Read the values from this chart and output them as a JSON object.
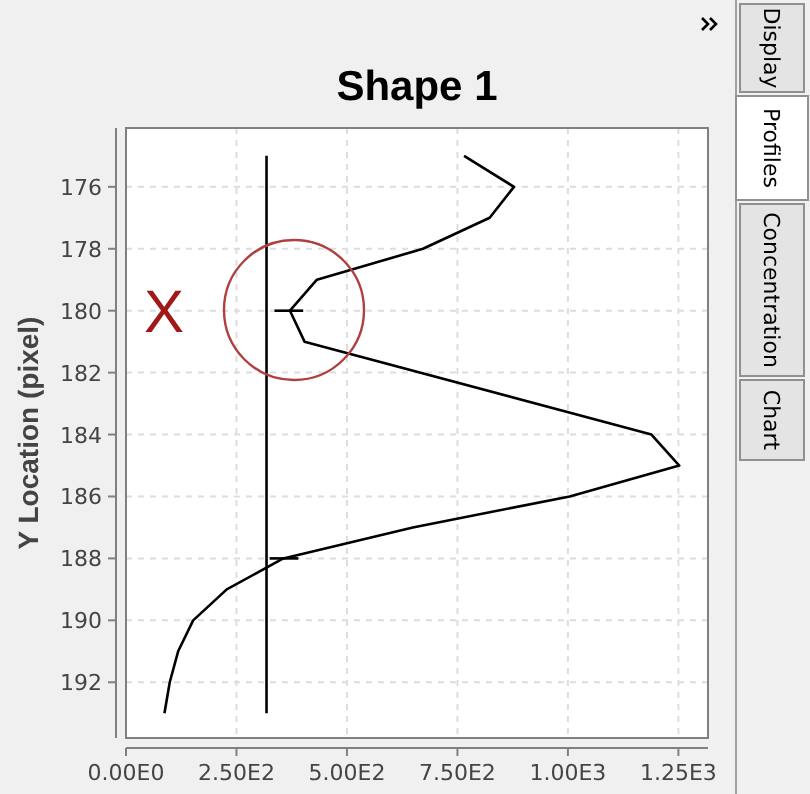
{
  "chart_data": {
    "type": "line",
    "title": "Shape 1",
    "ylabel": "Y Location (pixel)",
    "xlim": [
      0,
      1317
    ],
    "ylim": [
      193.8,
      174.1
    ],
    "xticks": [
      {
        "value": 0,
        "label": "0.00E0"
      },
      {
        "value": 250,
        "label": "2.50E2"
      },
      {
        "value": 500,
        "label": "5.00E2"
      },
      {
        "value": 750,
        "label": "7.50E2"
      },
      {
        "value": 1000,
        "label": "1.00E3"
      },
      {
        "value": 1250,
        "label": "1.25E3"
      }
    ],
    "yticks": [
      176,
      178,
      180,
      182,
      184,
      186,
      188,
      190,
      192
    ],
    "grid": true,
    "line_style": "solid",
    "marker": "none",
    "series": [
      {
        "color": "#000000",
        "x": [
          765,
          878,
          823,
          672,
          432,
          371,
          404,
          1189,
          1252,
          1004,
          649,
          356,
          228,
          152,
          118,
          99,
          87
        ],
        "values": [
          175,
          176,
          177,
          178,
          179,
          180,
          181,
          184,
          185,
          186,
          187,
          188,
          189,
          190,
          191,
          192,
          193
        ]
      },
      {
        "color": "#000000",
        "x": [
          318,
          318
        ],
        "values": [
          175,
          193
        ]
      },
      {
        "color": "#000000",
        "x": [
          336,
          401
        ],
        "values": [
          180,
          180
        ]
      },
      {
        "color": "#000000",
        "x": [
          325,
          390
        ],
        "values": [
          188,
          188
        ]
      }
    ],
    "annotations": [
      "X",
      "Display",
      "Profiles",
      "Concentration",
      "Chart"
    ]
  }
}
